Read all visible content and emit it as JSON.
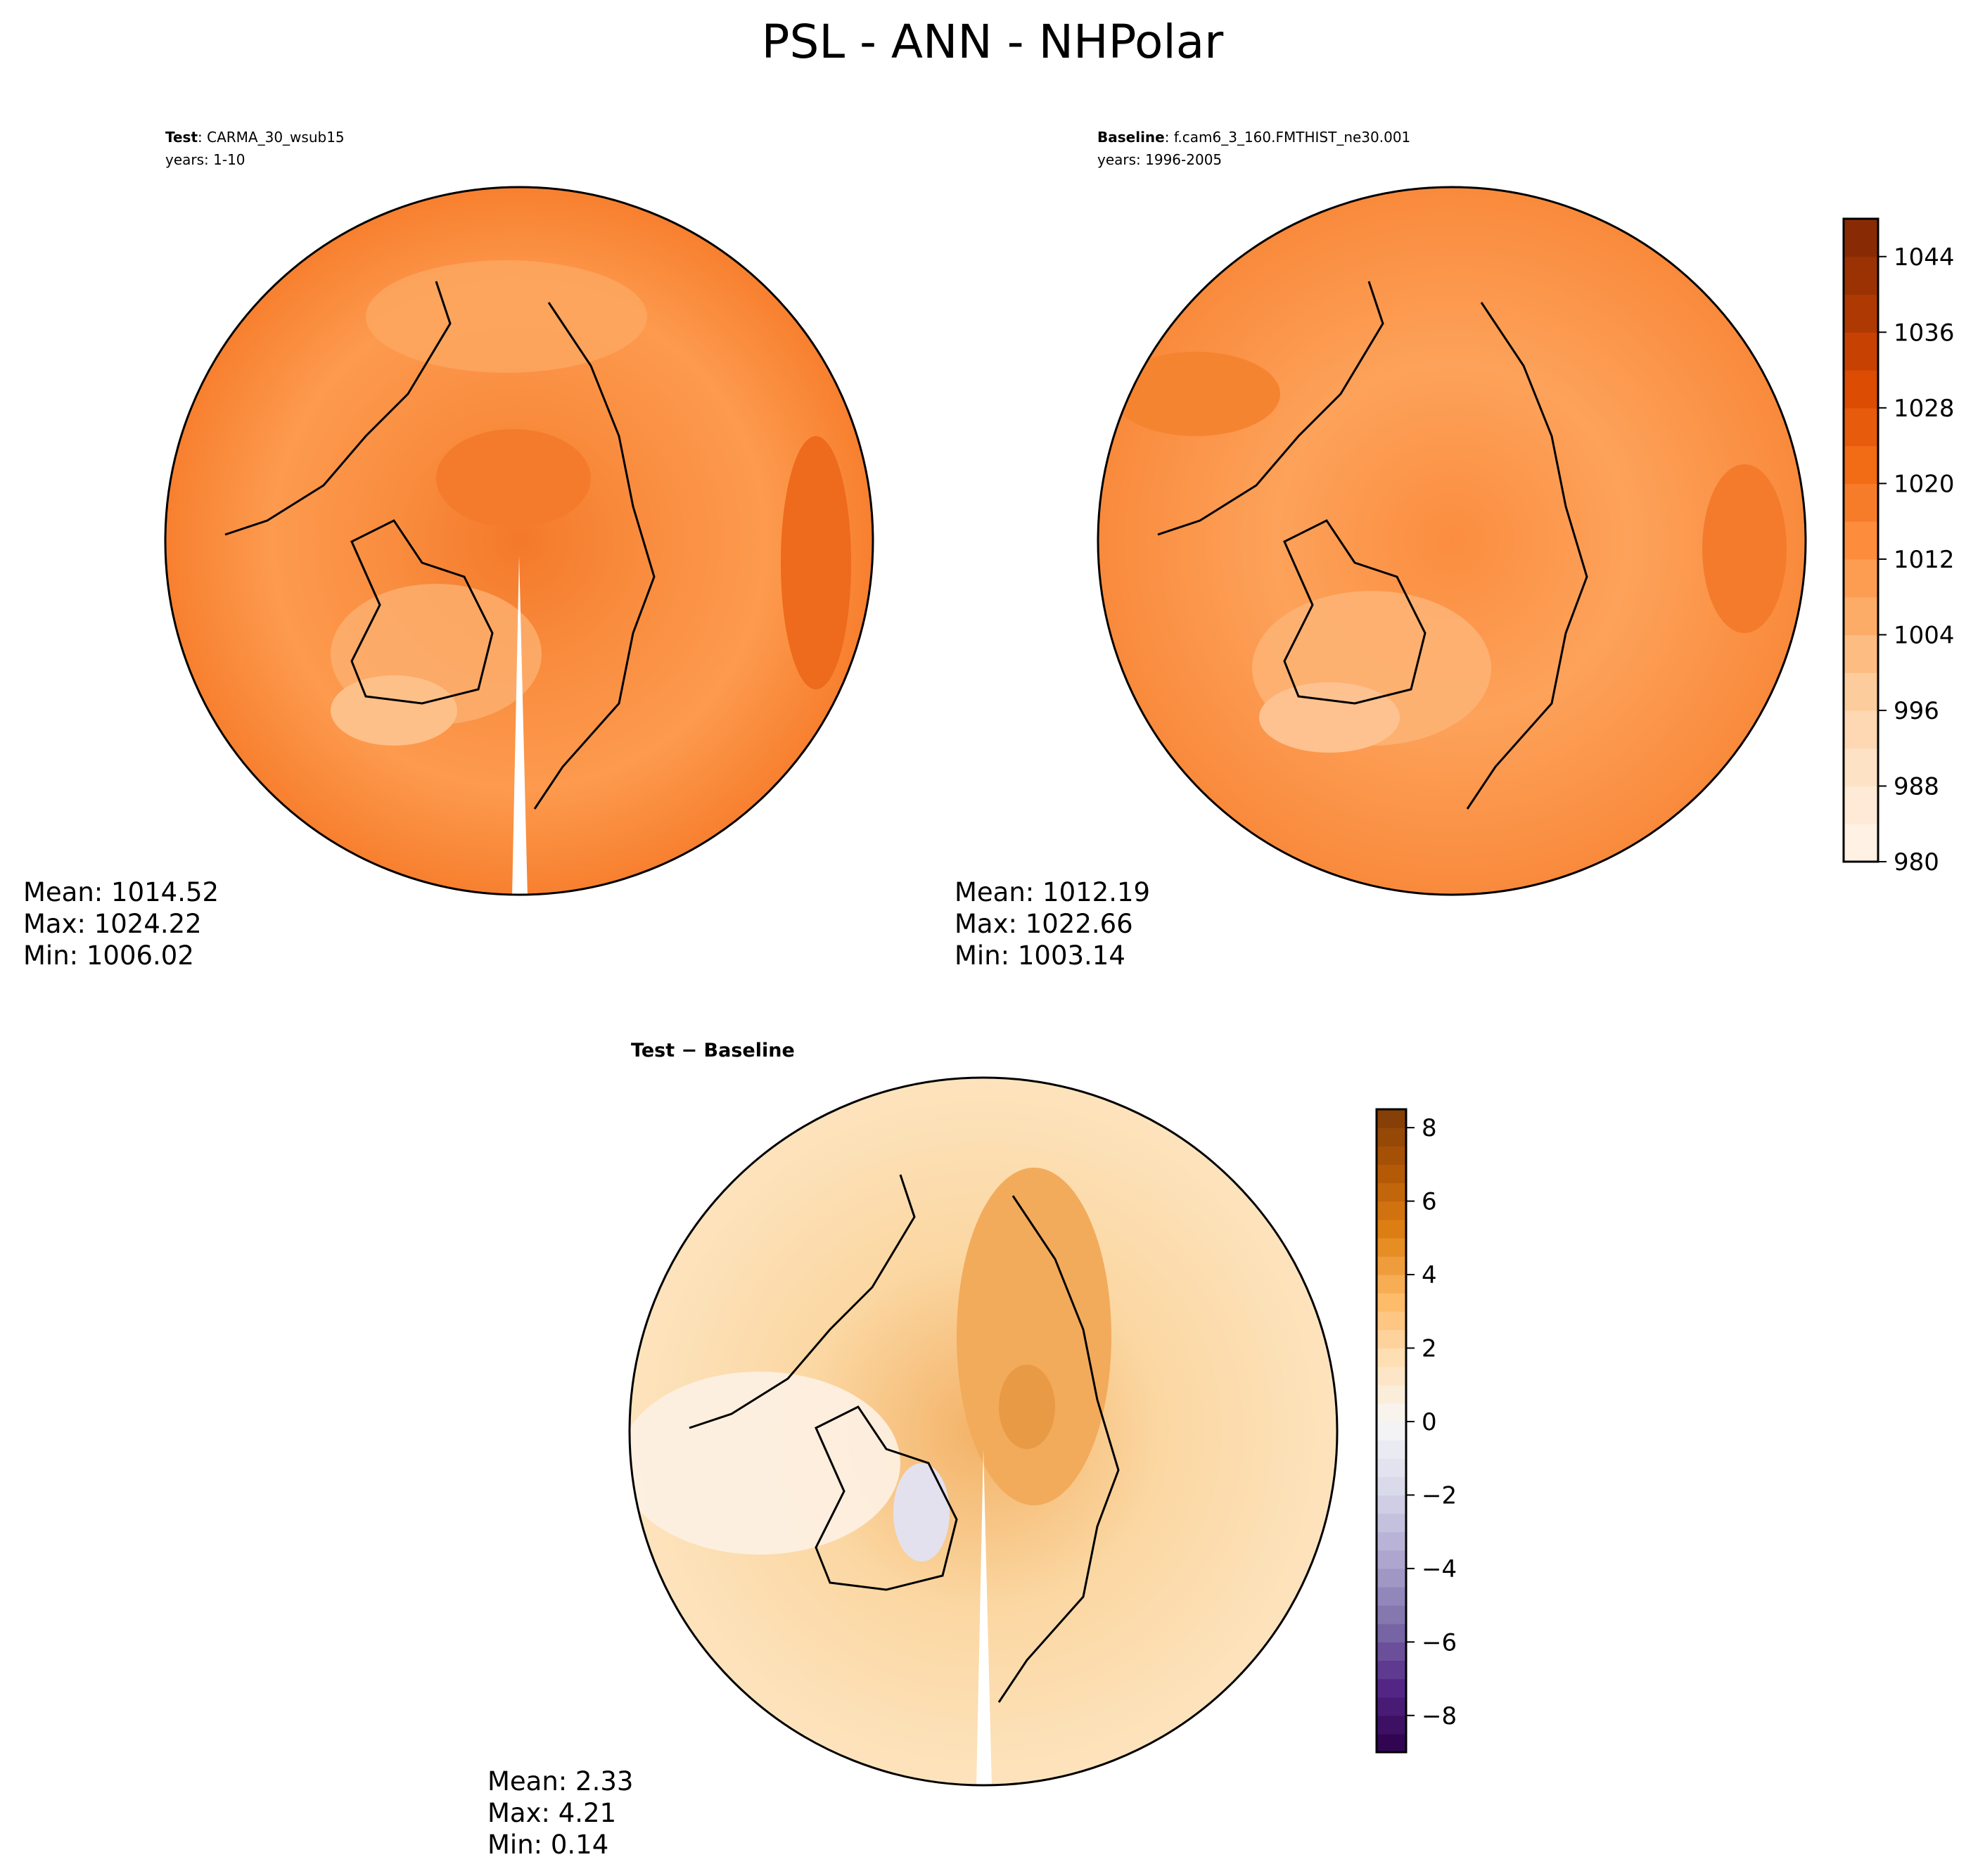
{
  "chart_data": [
    {
      "type": "heatmap",
      "panel": "test",
      "title_bold": "Test",
      "title_rest": ": CARMA_30_wsub15",
      "years": "years: 1-10",
      "projection": "north polar stereographic",
      "stats": {
        "mean": "Mean: 1014.52",
        "max": "Max: 1024.22",
        "min": "Min: 1006.02"
      }
    },
    {
      "type": "heatmap",
      "panel": "baseline",
      "title_bold": "Baseline",
      "title_rest": ": f.cam6_3_160.FMTHIST_ne30.001",
      "years": "years: 1996-2005",
      "projection": "north polar stereographic",
      "stats": {
        "mean": "Mean: 1012.19",
        "max": "Max: 1022.66",
        "min": "Min: 1003.14"
      },
      "colorbar": {
        "range": [
          980,
          1048
        ],
        "step": 4,
        "ticks": [
          "1044",
          "1036",
          "1028",
          "1020",
          "1012",
          "1004",
          "996",
          "988",
          "980"
        ],
        "tick_values": [
          1044,
          1036,
          1028,
          1020,
          1012,
          1004,
          996,
          988,
          980
        ],
        "colormap": "Oranges"
      }
    },
    {
      "type": "heatmap",
      "panel": "difference",
      "title": "Test − Baseline",
      "projection": "north polar stereographic",
      "stats": {
        "mean": "Mean:  2.33",
        "max": "Max:  4.21",
        "min": "Min:  0.14"
      },
      "colorbar": {
        "range": [
          -9,
          8.5
        ],
        "step": 0.5,
        "ticks": [
          "8",
          "6",
          "4",
          "2",
          "0",
          "−2",
          "−4",
          "−6",
          "−8"
        ],
        "tick_values": [
          8,
          6,
          4,
          2,
          0,
          -2,
          -4,
          -6,
          -8
        ],
        "colormap": "PuOr_r"
      }
    }
  ],
  "figure_title": "PSL - ANN - NHPolar"
}
